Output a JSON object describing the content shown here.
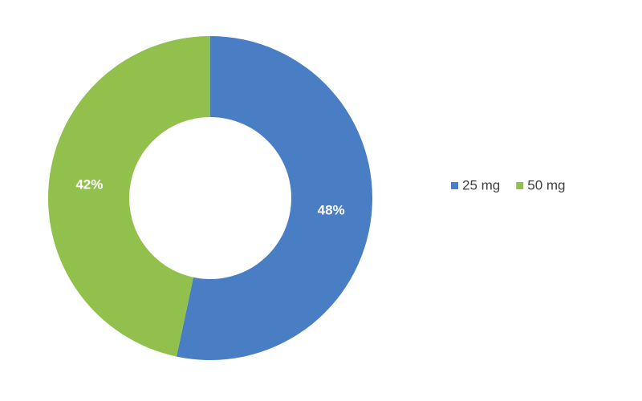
{
  "chart_data": {
    "type": "donut",
    "categories": [
      "25 mg",
      "50 mg"
    ],
    "values": [
      48,
      42
    ],
    "value_labels": [
      "48%",
      "42%"
    ],
    "colors": [
      "#4a7ec4",
      "#92c04c"
    ],
    "legend": "right"
  }
}
